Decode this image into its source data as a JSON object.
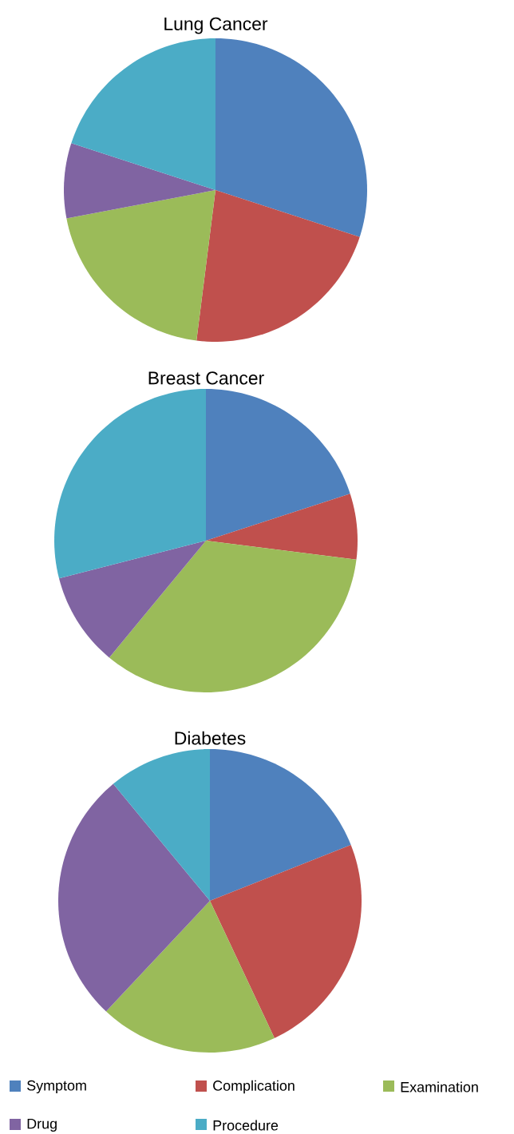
{
  "chart_data": [
    {
      "type": "pie",
      "title": "Lung Cancer",
      "categories": [
        null,
        null,
        null,
        null,
        null
      ],
      "values": [
        30,
        22,
        20,
        8,
        20
      ],
      "colors": [
        "#4f81bd",
        "#c0504d",
        "#9bbb59",
        "#8064a2",
        "#4bacc6"
      ]
    },
    {
      "type": "pie",
      "title": "Breast Cancer",
      "categories": [
        null,
        null,
        null,
        null,
        null
      ],
      "values": [
        20,
        7,
        34,
        10,
        29
      ],
      "colors": [
        "#4f81bd",
        "#c0504d",
        "#9bbb59",
        "#8064a2",
        "#4bacc6"
      ]
    },
    {
      "type": "pie",
      "title": "Diabetes",
      "categories": [
        "Symptom",
        "Complication",
        "Examination",
        "Drug",
        "Procedure"
      ],
      "values": [
        19,
        24,
        19,
        27,
        11
      ],
      "colors": [
        "#4f81bd",
        "#c0504d",
        "#9bbb59",
        "#8064a2",
        "#4bacc6"
      ],
      "legend": "bottom"
    }
  ]
}
